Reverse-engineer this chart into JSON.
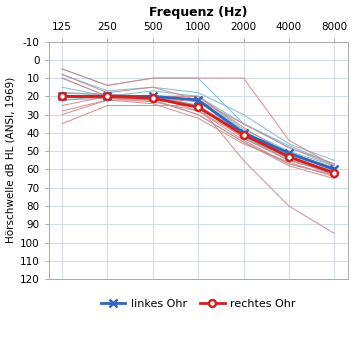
{
  "title": "Frequenz (Hz)",
  "ylabel": "Hörschwelle dB HL (ANSI, 1969)",
  "freq_labels": [
    "125",
    "250",
    "500",
    "1000",
    "2000",
    "4000",
    "8000"
  ],
  "freq_values": [
    125,
    250,
    500,
    1000,
    2000,
    4000,
    8000
  ],
  "ylim": [
    -10,
    120
  ],
  "yticks": [
    -10,
    0,
    10,
    20,
    30,
    40,
    50,
    60,
    70,
    80,
    90,
    100,
    110,
    120
  ],
  "mean_blue": [
    20,
    20,
    20,
    22,
    40,
    51,
    60
  ],
  "mean_red": [
    20,
    20,
    21,
    26,
    41,
    53,
    62
  ],
  "blue_color": "#3366bb",
  "red_color": "#cc2222",
  "light_blue": "#7ab8d4",
  "light_red": "#d48888",
  "bg_color": "#ffffff",
  "grid_color": "#c8d8e8",
  "individual_blue": [
    [
      15,
      20,
      17,
      20,
      35,
      48,
      58
    ],
    [
      20,
      20,
      20,
      20,
      38,
      50,
      58
    ],
    [
      20,
      19,
      20,
      22,
      42,
      55,
      62
    ],
    [
      18,
      19,
      20,
      22,
      40,
      52,
      60
    ],
    [
      22,
      20,
      21,
      25,
      43,
      54,
      61
    ],
    [
      5,
      14,
      10,
      10,
      35,
      47,
      57
    ],
    [
      10,
      20,
      20,
      20,
      39,
      51,
      59
    ],
    [
      20,
      20,
      22,
      30,
      45,
      57,
      63
    ],
    [
      8,
      17,
      15,
      18,
      30,
      46,
      55
    ],
    [
      20,
      21,
      20,
      25,
      42,
      55,
      62
    ]
  ],
  "individual_red": [
    [
      25,
      20,
      20,
      20,
      37,
      52,
      60
    ],
    [
      20,
      20,
      21,
      23,
      40,
      51,
      59
    ],
    [
      30,
      22,
      22,
      25,
      43,
      55,
      62
    ],
    [
      18,
      19,
      20,
      28,
      42,
      54,
      63
    ],
    [
      22,
      21,
      22,
      30,
      45,
      58,
      65
    ],
    [
      5,
      14,
      10,
      10,
      10,
      44,
      58
    ],
    [
      10,
      20,
      20,
      25,
      40,
      53,
      61
    ],
    [
      28,
      22,
      24,
      32,
      46,
      56,
      64
    ],
    [
      8,
      18,
      15,
      22,
      35,
      48,
      57
    ],
    [
      20,
      21,
      23,
      28,
      44,
      57,
      63
    ],
    [
      35,
      25,
      25,
      25,
      55,
      80,
      95
    ]
  ]
}
